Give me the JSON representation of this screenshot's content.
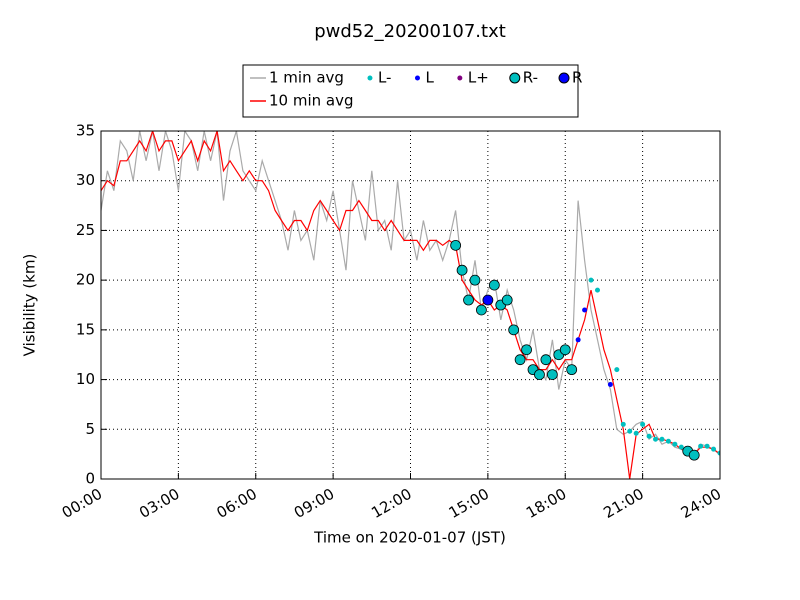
{
  "chart_data": {
    "type": "line",
    "title": "pwd52_20200107.txt",
    "xlabel": "Time on 2020-01-07 (JST)",
    "ylabel": "Visibility (km)",
    "xlim": [
      0,
      24
    ],
    "ylim": [
      0,
      35
    ],
    "xticks": [
      {
        "value": 0,
        "label": "00:00"
      },
      {
        "value": 3,
        "label": "03:00"
      },
      {
        "value": 6,
        "label": "06:00"
      },
      {
        "value": 9,
        "label": "09:00"
      },
      {
        "value": 12,
        "label": "12:00"
      },
      {
        "value": 15,
        "label": "15:00"
      },
      {
        "value": 18,
        "label": "18:00"
      },
      {
        "value": 21,
        "label": "21:00"
      },
      {
        "value": 24,
        "label": "24:00"
      }
    ],
    "yticks": [
      0,
      5,
      10,
      15,
      20,
      25,
      30,
      35
    ],
    "grid": true,
    "x": [
      0,
      0.25,
      0.5,
      0.75,
      1,
      1.25,
      1.5,
      1.75,
      2,
      2.25,
      2.5,
      2.75,
      3,
      3.25,
      3.5,
      3.75,
      4,
      4.25,
      4.5,
      4.75,
      5,
      5.25,
      5.5,
      5.75,
      6,
      6.25,
      6.5,
      6.75,
      7,
      7.25,
      7.5,
      7.75,
      8,
      8.25,
      8.5,
      8.75,
      9,
      9.25,
      9.5,
      9.75,
      10,
      10.25,
      10.5,
      10.75,
      11,
      11.25,
      11.5,
      11.75,
      12,
      12.25,
      12.5,
      12.75,
      13,
      13.25,
      13.5,
      13.75,
      14,
      14.25,
      14.5,
      14.75,
      15,
      15.25,
      15.5,
      15.75,
      16,
      16.25,
      16.5,
      16.75,
      17,
      17.25,
      17.5,
      17.75,
      18,
      18.25,
      18.5,
      18.75,
      19,
      19.25,
      19.5,
      19.75,
      20,
      20.25,
      20.5,
      20.75,
      21,
      21.25,
      21.5,
      21.75,
      22,
      22.25,
      22.5,
      22.75,
      23,
      23.25,
      23.5,
      23.75,
      24
    ],
    "series": [
      {
        "name": "1 min avg",
        "color": "#aaaaaa",
        "marker": "line",
        "values": [
          27,
          31,
          29,
          34,
          33,
          30,
          35,
          32,
          35,
          31,
          35,
          33,
          29,
          35,
          34,
          31,
          35,
          32,
          35,
          28,
          33,
          35,
          31,
          30,
          29,
          32,
          30,
          28,
          26,
          23,
          27,
          24,
          25,
          22,
          28,
          26,
          29,
          25,
          21,
          30,
          27,
          24,
          31,
          25,
          26,
          23,
          30,
          24,
          25,
          22,
          26,
          23,
          24,
          22,
          24,
          27,
          21,
          18,
          22,
          17,
          19,
          20,
          16,
          19,
          17,
          14,
          12,
          15,
          11,
          10,
          14,
          9,
          12,
          11,
          28,
          22,
          17,
          14,
          11,
          9,
          5,
          4.5,
          4.8,
          5.5,
          5.8,
          4,
          4.5,
          3.5,
          3.8,
          3.2,
          3,
          2.6,
          2.3,
          3.5,
          3.3,
          3,
          2.4
        ]
      },
      {
        "name": "10 min avg",
        "color": "#ff0000",
        "marker": "line",
        "values": [
          29,
          30,
          29.5,
          32,
          32,
          33,
          34,
          33,
          35,
          33,
          34,
          34,
          32,
          33,
          34,
          32,
          34,
          33,
          35,
          31,
          32,
          31,
          30,
          31,
          30,
          30,
          29,
          27,
          26,
          25,
          26,
          26,
          25,
          27,
          28,
          27,
          26,
          25,
          27,
          27,
          28,
          27,
          26,
          26,
          25,
          26,
          25,
          24,
          24,
          24,
          23,
          24,
          24,
          23.5,
          24,
          23.5,
          20,
          19,
          18,
          17.5,
          18,
          17,
          17.5,
          17,
          15,
          13,
          12,
          12,
          11,
          11,
          12,
          11,
          12,
          12,
          14,
          16,
          19,
          16,
          13,
          11,
          8,
          5,
          0,
          4.5,
          5,
          5.5,
          4,
          4,
          3.8,
          3.5,
          3,
          2.7,
          2.5,
          3.2,
          3.2,
          3,
          2.5
        ]
      },
      {
        "name": "L-",
        "color": "#00bfbf",
        "marker": "dot",
        "values": [
          null,
          null,
          null,
          null,
          null,
          null,
          null,
          null,
          null,
          null,
          null,
          null,
          null,
          null,
          null,
          null,
          null,
          null,
          null,
          null,
          null,
          null,
          null,
          null,
          null,
          null,
          null,
          null,
          null,
          null,
          null,
          null,
          null,
          null,
          null,
          null,
          null,
          null,
          null,
          null,
          null,
          null,
          null,
          null,
          null,
          null,
          null,
          null,
          null,
          null,
          null,
          null,
          null,
          null,
          null,
          null,
          null,
          null,
          null,
          null,
          null,
          null,
          null,
          null,
          null,
          null,
          null,
          null,
          null,
          null,
          null,
          null,
          null,
          null,
          null,
          null,
          20,
          19,
          null,
          null,
          11,
          5.5,
          4.8,
          4.6,
          5.5,
          4.3,
          4,
          4,
          3.8,
          3.5,
          3.2,
          null,
          null,
          3.3,
          3.3,
          3,
          2.6
        ]
      },
      {
        "name": "L",
        "color": "#0000ff",
        "marker": "dot",
        "values": [
          null,
          null,
          null,
          null,
          null,
          null,
          null,
          null,
          null,
          null,
          null,
          null,
          null,
          null,
          null,
          null,
          null,
          null,
          null,
          null,
          null,
          null,
          null,
          null,
          null,
          null,
          null,
          null,
          null,
          null,
          null,
          null,
          null,
          null,
          null,
          null,
          null,
          null,
          null,
          null,
          null,
          null,
          null,
          null,
          null,
          null,
          null,
          null,
          null,
          null,
          null,
          null,
          null,
          null,
          null,
          null,
          null,
          null,
          null,
          null,
          null,
          null,
          null,
          null,
          null,
          null,
          null,
          null,
          null,
          null,
          null,
          null,
          null,
          null,
          14,
          17,
          null,
          null,
          null,
          9.5,
          null,
          null,
          null,
          null,
          null,
          null,
          null,
          null,
          null,
          null,
          null,
          null,
          null,
          null,
          null,
          null,
          null
        ]
      },
      {
        "name": "L+",
        "color": "#800080",
        "marker": "dot",
        "values": [
          null,
          null,
          null,
          null,
          null,
          null,
          null,
          null,
          null,
          null,
          null,
          null,
          null,
          null,
          null,
          null,
          null,
          null,
          null,
          null,
          null,
          null,
          null,
          null,
          null,
          null,
          null,
          null,
          null,
          null,
          null,
          null,
          null,
          null,
          null,
          null,
          null,
          null,
          null,
          null,
          null,
          null,
          null,
          null,
          null,
          null,
          null,
          null,
          null,
          null,
          null,
          null,
          null,
          null,
          null,
          null,
          null,
          null,
          null,
          null,
          null,
          null,
          null,
          null,
          null,
          null,
          null,
          null,
          null,
          null,
          null,
          null,
          null,
          null,
          null,
          null,
          null,
          null,
          null,
          null,
          null,
          null,
          null,
          null,
          null,
          null,
          null,
          null,
          null,
          null,
          null,
          null,
          null,
          null,
          null,
          null,
          null
        ]
      },
      {
        "name": "R-",
        "color": "#00bfbf",
        "marker": "circle",
        "values": [
          null,
          null,
          null,
          null,
          null,
          null,
          null,
          null,
          null,
          null,
          null,
          null,
          null,
          null,
          null,
          null,
          null,
          null,
          null,
          null,
          null,
          null,
          null,
          null,
          null,
          null,
          null,
          null,
          null,
          null,
          null,
          null,
          null,
          null,
          null,
          null,
          null,
          null,
          null,
          null,
          null,
          null,
          null,
          null,
          null,
          null,
          null,
          null,
          null,
          null,
          null,
          null,
          null,
          null,
          null,
          23.5,
          21,
          18,
          20,
          17,
          null,
          19.5,
          17.5,
          18,
          15,
          12,
          13,
          11,
          10.5,
          12,
          10.5,
          12.5,
          13,
          11,
          null,
          null,
          null,
          null,
          null,
          null,
          null,
          null,
          null,
          null,
          null,
          null,
          null,
          null,
          null,
          null,
          null,
          2.8,
          2.4,
          null,
          null,
          null,
          null
        ]
      },
      {
        "name": "R",
        "color": "#0000ff",
        "marker": "circle",
        "values": [
          null,
          null,
          null,
          null,
          null,
          null,
          null,
          null,
          null,
          null,
          null,
          null,
          null,
          null,
          null,
          null,
          null,
          null,
          null,
          null,
          null,
          null,
          null,
          null,
          null,
          null,
          null,
          null,
          null,
          null,
          null,
          null,
          null,
          null,
          null,
          null,
          null,
          null,
          null,
          null,
          null,
          null,
          null,
          null,
          null,
          null,
          null,
          null,
          null,
          null,
          null,
          null,
          null,
          null,
          null,
          null,
          null,
          null,
          null,
          null,
          18,
          null,
          null,
          null,
          null,
          null,
          null,
          null,
          null,
          null,
          null,
          null,
          null,
          null,
          null,
          null,
          null,
          null,
          null,
          null,
          null,
          null,
          null,
          null,
          null,
          null,
          null,
          null,
          null,
          null,
          null,
          null,
          null,
          null,
          null,
          null,
          null
        ]
      }
    ]
  }
}
